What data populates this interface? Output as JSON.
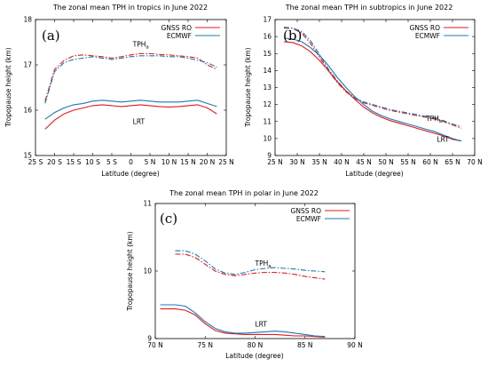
{
  "colors": {
    "gnss": "#e41a1c",
    "ecmwf": "#1f78b4"
  },
  "chart_data": [
    {
      "type": "line",
      "panel_label": "(a)",
      "title": "The zonal mean TPH in tropics in June 2022",
      "xlabel": "Latitude (degree)",
      "ylabel": "Tropopause height (km)",
      "xlim": [
        -25,
        25
      ],
      "ylim": [
        15,
        18
      ],
      "xticks": [
        -25,
        -20,
        -15,
        -10,
        -5,
        0,
        5,
        10,
        15,
        20,
        25
      ],
      "xtick_labels": [
        "25 S",
        "20 S",
        "15 S",
        "10 S",
        "5 S",
        "0",
        "5 N",
        "10 N",
        "15 N",
        "20 N",
        "25 N"
      ],
      "yticks": [
        15,
        16,
        17,
        18
      ],
      "ytick_labels": [
        "15",
        "16",
        "17",
        "18"
      ],
      "legend": {
        "position": "top-right",
        "entries": [
          "GNSS RO",
          "ECMWF"
        ]
      },
      "annotations": [
        {
          "text": "TPH",
          "sub": "a",
          "x": 0.5,
          "y": 17.4
        },
        {
          "text": "LRT",
          "x": 0.5,
          "y": 15.7
        }
      ],
      "series": [
        {
          "name": "GNSS RO",
          "metric": "TPHa",
          "style": "dashdot",
          "color": "gnss",
          "x": [
            -22.5,
            -20,
            -17.5,
            -15,
            -12.5,
            -10,
            -7.5,
            -5,
            -2.5,
            0,
            2.5,
            5,
            7.5,
            10,
            12.5,
            15,
            17.5,
            20,
            22.5
          ],
          "y": [
            16.2,
            16.9,
            17.1,
            17.2,
            17.22,
            17.2,
            17.18,
            17.15,
            17.18,
            17.22,
            17.25,
            17.25,
            17.23,
            17.22,
            17.2,
            17.18,
            17.15,
            17.0,
            16.9
          ]
        },
        {
          "name": "ECMWF",
          "metric": "TPHa",
          "style": "dashdot",
          "color": "ecmwf",
          "x": [
            -22.5,
            -20,
            -17.5,
            -15,
            -12.5,
            -10,
            -7.5,
            -5,
            -2.5,
            0,
            2.5,
            5,
            7.5,
            10,
            12.5,
            15,
            17.5,
            20,
            22.5
          ],
          "y": [
            16.15,
            16.85,
            17.05,
            17.12,
            17.15,
            17.18,
            17.15,
            17.12,
            17.15,
            17.18,
            17.2,
            17.2,
            17.2,
            17.18,
            17.18,
            17.15,
            17.1,
            17.05,
            16.95
          ]
        },
        {
          "name": "GNSS RO",
          "metric": "LRT",
          "style": "solid",
          "color": "gnss",
          "x": [
            -22.5,
            -20,
            -17.5,
            -15,
            -12.5,
            -10,
            -7.5,
            -5,
            -2.5,
            0,
            2.5,
            5,
            7.5,
            10,
            12.5,
            15,
            17.5,
            20,
            22.5
          ],
          "y": [
            15.58,
            15.78,
            15.92,
            16.0,
            16.05,
            16.1,
            16.12,
            16.1,
            16.08,
            16.1,
            16.12,
            16.1,
            16.08,
            16.07,
            16.08,
            16.1,
            16.12,
            16.05,
            15.92
          ]
        },
        {
          "name": "ECMWF",
          "metric": "LRT",
          "style": "solid",
          "color": "ecmwf",
          "x": [
            -22.5,
            -20,
            -17.5,
            -15,
            -12.5,
            -10,
            -7.5,
            -5,
            -2.5,
            0,
            2.5,
            5,
            7.5,
            10,
            12.5,
            15,
            17.5,
            20,
            22.5
          ],
          "y": [
            15.8,
            15.95,
            16.05,
            16.12,
            16.15,
            16.2,
            16.22,
            16.2,
            16.18,
            16.2,
            16.22,
            16.2,
            16.18,
            16.18,
            16.18,
            16.2,
            16.22,
            16.15,
            16.08
          ]
        }
      ]
    },
    {
      "type": "line",
      "panel_label": "(b)",
      "title": "The zonal mean TPH in subtropics in June 2022",
      "xlabel": "Latitude (degree)",
      "ylabel": "Tropopause height (km)",
      "xlim": [
        25,
        70
      ],
      "ylim": [
        9,
        17
      ],
      "xticks": [
        25,
        30,
        35,
        40,
        45,
        50,
        55,
        60,
        65,
        70
      ],
      "xtick_labels": [
        "25 N",
        "30 N",
        "35 N",
        "40 N",
        "45 N",
        "50 N",
        "55 N",
        "60 N",
        "65 N",
        "70 N"
      ],
      "yticks": [
        9,
        10,
        11,
        12,
        13,
        14,
        15,
        16,
        17
      ],
      "ytick_labels": [
        "9",
        "10",
        "11",
        "12",
        "13",
        "14",
        "15",
        "16",
        "17"
      ],
      "legend": {
        "position": "top-right",
        "entries": [
          "GNSS RO",
          "ECMWF"
        ]
      },
      "annotations": [
        {
          "text": "TPH",
          "sub": "a",
          "x": 59,
          "y": 11.05
        },
        {
          "text": "LRT",
          "x": 61.5,
          "y": 9.8
        }
      ],
      "series": [
        {
          "name": "GNSS RO",
          "metric": "TPHa",
          "style": "dashdot",
          "color": "gnss",
          "x": [
            27,
            29,
            31,
            33,
            35,
            37,
            39,
            41,
            43,
            45,
            47,
            49,
            51,
            53,
            55,
            57,
            59,
            61,
            63,
            65,
            67
          ],
          "y": [
            16.5,
            16.48,
            16.2,
            15.6,
            14.8,
            14.0,
            13.3,
            12.75,
            12.35,
            12.1,
            11.95,
            11.8,
            11.65,
            11.55,
            11.45,
            11.35,
            11.25,
            11.15,
            11.0,
            10.8,
            10.6
          ]
        },
        {
          "name": "ECMWF",
          "metric": "TPHa",
          "style": "dashdot",
          "color": "ecmwf",
          "x": [
            27,
            29,
            31,
            33,
            35,
            37,
            39,
            41,
            43,
            45,
            47,
            49,
            51,
            53,
            55,
            57,
            59,
            61,
            63,
            65,
            67
          ],
          "y": [
            16.55,
            16.5,
            16.3,
            15.75,
            14.95,
            14.1,
            13.4,
            12.8,
            12.4,
            12.15,
            12.0,
            11.85,
            11.7,
            11.6,
            11.5,
            11.4,
            11.3,
            11.2,
            11.05,
            10.85,
            10.7
          ]
        },
        {
          "name": "GNSS RO",
          "metric": "LRT",
          "style": "solid",
          "color": "gnss",
          "x": [
            27,
            29,
            31,
            33,
            35,
            37,
            39,
            41,
            43,
            45,
            47,
            49,
            51,
            53,
            55,
            57,
            59,
            61,
            63,
            65,
            67
          ],
          "y": [
            15.7,
            15.65,
            15.45,
            15.1,
            14.6,
            14.0,
            13.35,
            12.8,
            12.3,
            11.85,
            11.5,
            11.25,
            11.05,
            10.9,
            10.75,
            10.6,
            10.45,
            10.3,
            10.15,
            9.95,
            9.85
          ]
        },
        {
          "name": "ECMWF",
          "metric": "LRT",
          "style": "solid",
          "color": "ecmwf",
          "x": [
            27,
            29,
            31,
            33,
            35,
            37,
            39,
            41,
            43,
            45,
            47,
            49,
            51,
            53,
            55,
            57,
            59,
            61,
            63,
            65,
            67
          ],
          "y": [
            15.9,
            15.85,
            15.7,
            15.35,
            14.9,
            14.3,
            13.6,
            13.0,
            12.45,
            12.0,
            11.6,
            11.35,
            11.15,
            11.0,
            10.85,
            10.7,
            10.55,
            10.4,
            10.2,
            10.0,
            9.85
          ]
        }
      ]
    },
    {
      "type": "line",
      "panel_label": "(c)",
      "title": "The zonal mean TPH in polar in June 2022",
      "xlabel": "Latitude (degree)",
      "ylabel": "Tropopause height (km)",
      "xlim": [
        70,
        90
      ],
      "ylim": [
        9,
        11
      ],
      "xticks": [
        70,
        75,
        80,
        85,
        90
      ],
      "xtick_labels": [
        "70 N",
        "75 N",
        "80 N",
        "85 N",
        "90 N"
      ],
      "yticks": [
        9,
        10,
        11
      ],
      "ytick_labels": [
        "9",
        "10",
        "11"
      ],
      "legend": {
        "position": "top-right",
        "entries": [
          "GNSS RO",
          "ECMWF"
        ]
      },
      "annotations": [
        {
          "text": "TPH",
          "sub": "a",
          "x": 80,
          "y": 10.08
        },
        {
          "text": "LRT",
          "x": 80,
          "y": 9.18
        }
      ],
      "series": [
        {
          "name": "GNSS RO",
          "metric": "TPHa",
          "style": "dashdot",
          "color": "gnss",
          "x": [
            72,
            73,
            74,
            75,
            76,
            77,
            78,
            79,
            80,
            81,
            82,
            83,
            84,
            85,
            86,
            87
          ],
          "y": [
            10.25,
            10.25,
            10.2,
            10.1,
            10.0,
            9.95,
            9.93,
            9.95,
            9.97,
            9.98,
            9.98,
            9.97,
            9.95,
            9.92,
            9.9,
            9.88
          ]
        },
        {
          "name": "ECMWF",
          "metric": "TPHa",
          "style": "dashdot",
          "color": "ecmwf",
          "x": [
            72,
            73,
            74,
            75,
            76,
            77,
            78,
            79,
            80,
            81,
            82,
            83,
            84,
            85,
            86,
            87
          ],
          "y": [
            10.3,
            10.3,
            10.25,
            10.15,
            10.03,
            9.97,
            9.95,
            9.98,
            10.02,
            10.04,
            10.05,
            10.04,
            10.03,
            10.01,
            10.0,
            9.99
          ]
        },
        {
          "name": "GNSS RO",
          "metric": "LRT",
          "style": "solid",
          "color": "gnss",
          "x": [
            70.5,
            72,
            73,
            74,
            75,
            76,
            77,
            78,
            79,
            80,
            81,
            82,
            83,
            84,
            85,
            86,
            87
          ],
          "y": [
            9.44,
            9.44,
            9.42,
            9.35,
            9.22,
            9.12,
            9.08,
            9.07,
            9.06,
            9.06,
            9.06,
            9.06,
            9.05,
            9.04,
            9.04,
            9.03,
            9.02
          ]
        },
        {
          "name": "ECMWF",
          "metric": "LRT",
          "style": "solid",
          "color": "ecmwf",
          "x": [
            70.5,
            72,
            73,
            74,
            75,
            76,
            77,
            78,
            79,
            80,
            81,
            82,
            83,
            84,
            85,
            86,
            87
          ],
          "y": [
            9.5,
            9.5,
            9.48,
            9.38,
            9.25,
            9.15,
            9.1,
            9.08,
            9.08,
            9.09,
            9.1,
            9.11,
            9.1,
            9.08,
            9.06,
            9.04,
            9.03
          ]
        }
      ]
    }
  ]
}
